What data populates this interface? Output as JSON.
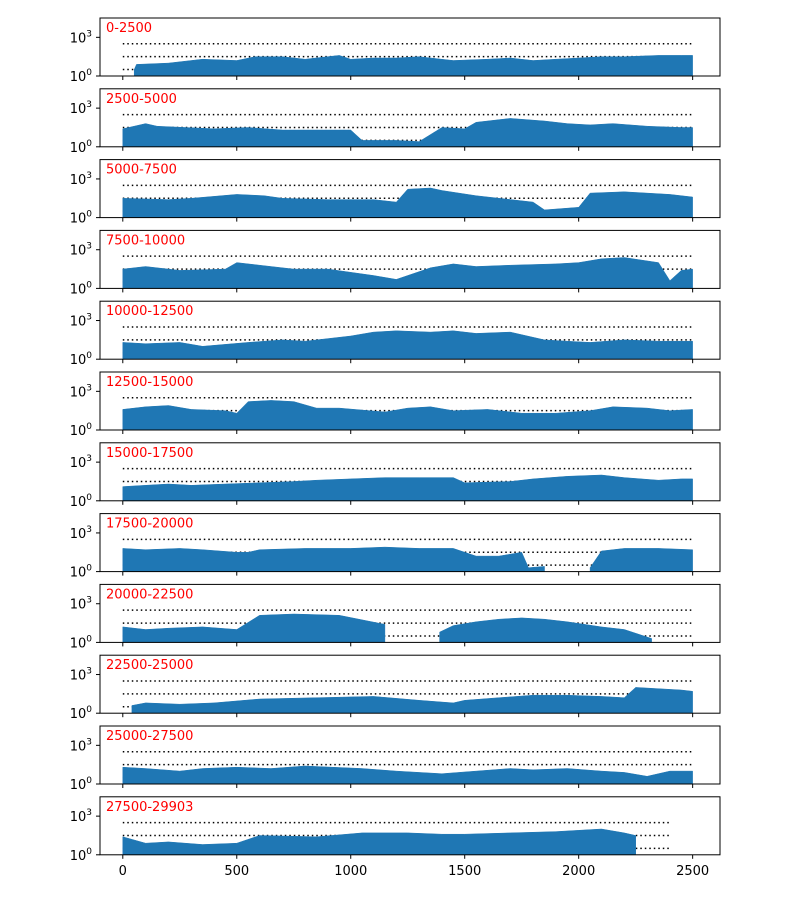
{
  "chart_data": {
    "type": "area",
    "y_scale": "log",
    "y_ticks": [
      {
        "base": "10",
        "exp": "0"
      },
      {
        "base": "10",
        "exp": "3"
      }
    ],
    "x_ticks": [
      "0",
      "500",
      "1000",
      "1500",
      "2000",
      "2500"
    ],
    "x_range": [
      -100,
      2620
    ],
    "y_range_exp": [
      0,
      4.5
    ],
    "color": "#1f77b4",
    "label_color": "#ff0000",
    "reference_line_exps": [
      0.5,
      1.5,
      2.5
    ],
    "panels": [
      {
        "label": "0-2500",
        "line_end": 2500,
        "x": [
          0,
          50,
          60,
          200,
          350,
          500,
          580,
          700,
          800,
          950,
          1000,
          1100,
          1200,
          1300,
          1450,
          1600,
          1700,
          1800,
          1900,
          2000,
          2100,
          2200,
          2350,
          2450,
          2500
        ],
        "y": [
          null,
          0.5,
          0.9,
          1.0,
          1.3,
          1.2,
          1.5,
          1.5,
          1.3,
          1.6,
          1.3,
          1.4,
          1.4,
          1.5,
          1.2,
          1.3,
          1.4,
          1.2,
          1.3,
          1.4,
          1.5,
          1.5,
          1.6,
          1.6,
          1.6
        ]
      },
      {
        "label": "2500-5000",
        "line_end": 2500,
        "x": [
          0,
          100,
          150,
          400,
          550,
          700,
          1000,
          1050,
          1200,
          1300,
          1400,
          1500,
          1550,
          1700,
          1850,
          1950,
          2050,
          2150,
          2300,
          2450,
          2500
        ],
        "y": [
          1.4,
          1.8,
          1.6,
          1.4,
          1.5,
          1.3,
          1.3,
          0.5,
          0.5,
          0.4,
          1.5,
          1.4,
          1.9,
          2.2,
          2.0,
          1.8,
          1.7,
          1.8,
          1.6,
          1.5,
          1.5
        ]
      },
      {
        "label": "5000-7500",
        "line_end": 2500,
        "x": [
          0,
          200,
          300,
          500,
          620,
          700,
          900,
          1100,
          1200,
          1250,
          1350,
          1400,
          1550,
          1800,
          1850,
          2000,
          2050,
          2200,
          2400,
          2500
        ],
        "y": [
          1.5,
          1.4,
          1.5,
          1.8,
          1.7,
          1.5,
          1.4,
          1.4,
          1.2,
          2.2,
          2.3,
          2.1,
          1.7,
          1.2,
          0.6,
          0.8,
          1.9,
          2.0,
          1.8,
          1.6
        ]
      },
      {
        "label": "7500-10000",
        "line_end": 2500,
        "x": [
          0,
          100,
          250,
          450,
          500,
          600,
          750,
          900,
          1100,
          1200,
          1350,
          1450,
          1550,
          1700,
          1900,
          2000,
          2100,
          2200,
          2350,
          2400,
          2450,
          2500
        ],
        "y": [
          1.5,
          1.7,
          1.4,
          1.5,
          2.0,
          1.8,
          1.5,
          1.5,
          1.0,
          0.7,
          1.6,
          1.9,
          1.7,
          1.8,
          1.9,
          2.0,
          2.3,
          2.4,
          2.0,
          0.6,
          1.4,
          1.5
        ]
      },
      {
        "label": "10000-12500",
        "line_end": 2500,
        "x": [
          0,
          100,
          250,
          350,
          550,
          700,
          800,
          1000,
          1100,
          1200,
          1350,
          1450,
          1550,
          1700,
          1850,
          1950,
          2050,
          2200,
          2350,
          2500
        ],
        "y": [
          1.3,
          1.2,
          1.3,
          1.0,
          1.3,
          1.5,
          1.4,
          1.8,
          2.1,
          2.2,
          2.1,
          2.2,
          2.0,
          2.1,
          1.5,
          1.4,
          1.3,
          1.5,
          1.4,
          1.4
        ]
      },
      {
        "label": "12500-15000",
        "line_end": 2500,
        "x": [
          0,
          100,
          200,
          300,
          450,
          500,
          550,
          650,
          750,
          850,
          950,
          1150,
          1250,
          1350,
          1450,
          1600,
          1750,
          1900,
          2050,
          2150,
          2300,
          2400,
          2500
        ],
        "y": [
          1.6,
          1.8,
          1.9,
          1.6,
          1.5,
          1.3,
          2.2,
          2.3,
          2.2,
          1.7,
          1.7,
          1.4,
          1.7,
          1.8,
          1.5,
          1.6,
          1.3,
          1.3,
          1.5,
          1.8,
          1.7,
          1.5,
          1.6
        ]
      },
      {
        "label": "15000-17500",
        "line_end": 2500,
        "x": [
          0,
          100,
          200,
          300,
          450,
          600,
          750,
          850,
          1000,
          1150,
          1300,
          1450,
          1500,
          1700,
          1800,
          1950,
          2100,
          2200,
          2350,
          2450,
          2500
        ],
        "y": [
          1.1,
          1.2,
          1.3,
          1.2,
          1.3,
          1.4,
          1.5,
          1.6,
          1.7,
          1.8,
          1.8,
          1.8,
          1.4,
          1.5,
          1.7,
          1.9,
          2.0,
          1.8,
          1.6,
          1.7,
          1.7
        ]
      },
      {
        "label": "17500-20000",
        "line_end": 2500,
        "x": [
          0,
          100,
          250,
          350,
          500,
          550,
          600,
          800,
          1000,
          1150,
          1300,
          1450,
          1550,
          1650,
          1750,
          1780,
          1850,
          1900,
          2000,
          2050,
          2100,
          2200,
          2350,
          2500
        ],
        "y": [
          1.8,
          1.7,
          1.8,
          1.7,
          1.5,
          1.5,
          1.7,
          1.8,
          1.8,
          1.9,
          1.8,
          1.8,
          1.2,
          1.2,
          1.5,
          0.3,
          0.4,
          null,
          null,
          0.3,
          1.6,
          1.8,
          1.8,
          1.7
        ]
      },
      {
        "label": "20000-22500",
        "line_end": 2500,
        "x": [
          0,
          100,
          200,
          350,
          500,
          600,
          750,
          950,
          1150,
          1250,
          1390,
          1450,
          1550,
          1650,
          1750,
          1850,
          1950,
          2100,
          2200,
          2320,
          2420,
          2500
        ],
        "y": [
          1.2,
          1.0,
          1.1,
          1.2,
          1.0,
          2.1,
          2.2,
          2.1,
          1.4,
          null,
          0.8,
          1.3,
          1.6,
          1.8,
          1.9,
          1.8,
          1.6,
          1.2,
          1.0,
          0.3,
          null,
          null
        ]
      },
      {
        "label": "22500-25000",
        "line_end": 2500,
        "x": [
          0,
          40,
          100,
          250,
          400,
          600,
          850,
          1100,
          1300,
          1450,
          1500,
          1650,
          1800,
          1950,
          2100,
          2200,
          2250,
          2350,
          2450,
          2500
        ],
        "y": [
          null,
          0.6,
          0.8,
          0.7,
          0.8,
          1.1,
          1.2,
          1.3,
          1.0,
          0.8,
          1.0,
          1.2,
          1.4,
          1.4,
          1.3,
          1.2,
          2.0,
          1.9,
          1.8,
          1.7
        ]
      },
      {
        "label": "25000-27500",
        "line_end": 2500,
        "x": [
          0,
          100,
          250,
          350,
          500,
          650,
          800,
          1050,
          1200,
          1400,
          1550,
          1700,
          1800,
          1950,
          2100,
          2200,
          2300,
          2400,
          2500
        ],
        "y": [
          1.3,
          1.2,
          1.0,
          1.2,
          1.3,
          1.2,
          1.4,
          1.2,
          1.0,
          0.8,
          1.0,
          1.2,
          1.1,
          1.2,
          1.0,
          0.9,
          0.6,
          1.0,
          1.0
        ]
      },
      {
        "label": "27500-29903",
        "line_end": 2400,
        "x": [
          0,
          100,
          200,
          350,
          500,
          600,
          850,
          1050,
          1250,
          1400,
          1500,
          1700,
          1900,
          2000,
          2100,
          2200,
          2250,
          2330,
          2400,
          2500
        ],
        "y": [
          1.4,
          0.9,
          1.0,
          0.8,
          0.9,
          1.5,
          1.4,
          1.7,
          1.7,
          1.6,
          1.6,
          1.7,
          1.8,
          1.9,
          2.0,
          1.7,
          1.5,
          null,
          null,
          null
        ]
      }
    ]
  }
}
